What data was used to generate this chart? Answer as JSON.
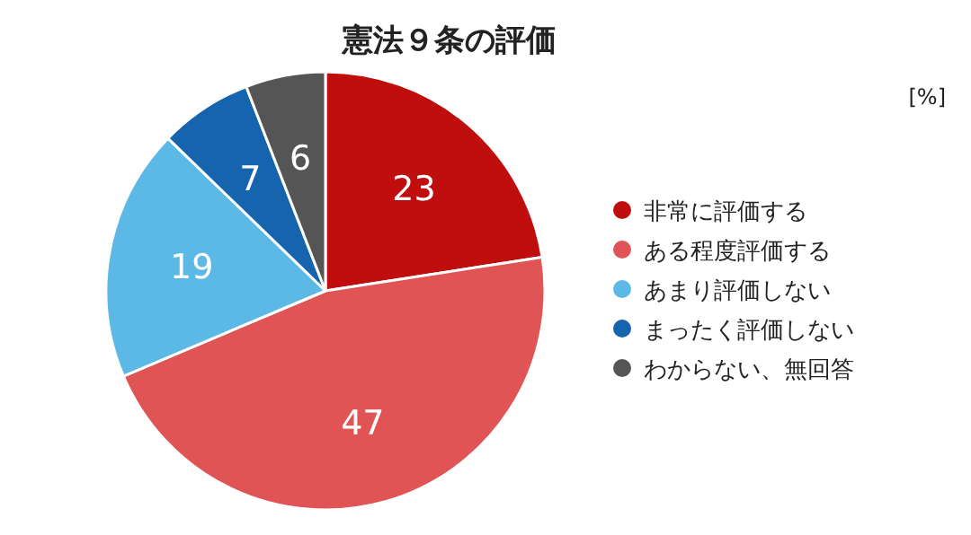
{
  "chart_data": {
    "type": "pie",
    "title": "憲法９条の評価",
    "categories": [
      "非常に評価する",
      "ある程度評価する",
      "あまり評価しない",
      "まったく評価しない",
      "わからない、無回答"
    ],
    "values": [
      23,
      47,
      19,
      7,
      6
    ],
    "colors": [
      "#c00d0d",
      "#e05456",
      "#5cb8e5",
      "#1663ae",
      "#555555"
    ],
    "data_labels": true,
    "legend": "right",
    "annotations": [
      "[%]"
    ]
  }
}
